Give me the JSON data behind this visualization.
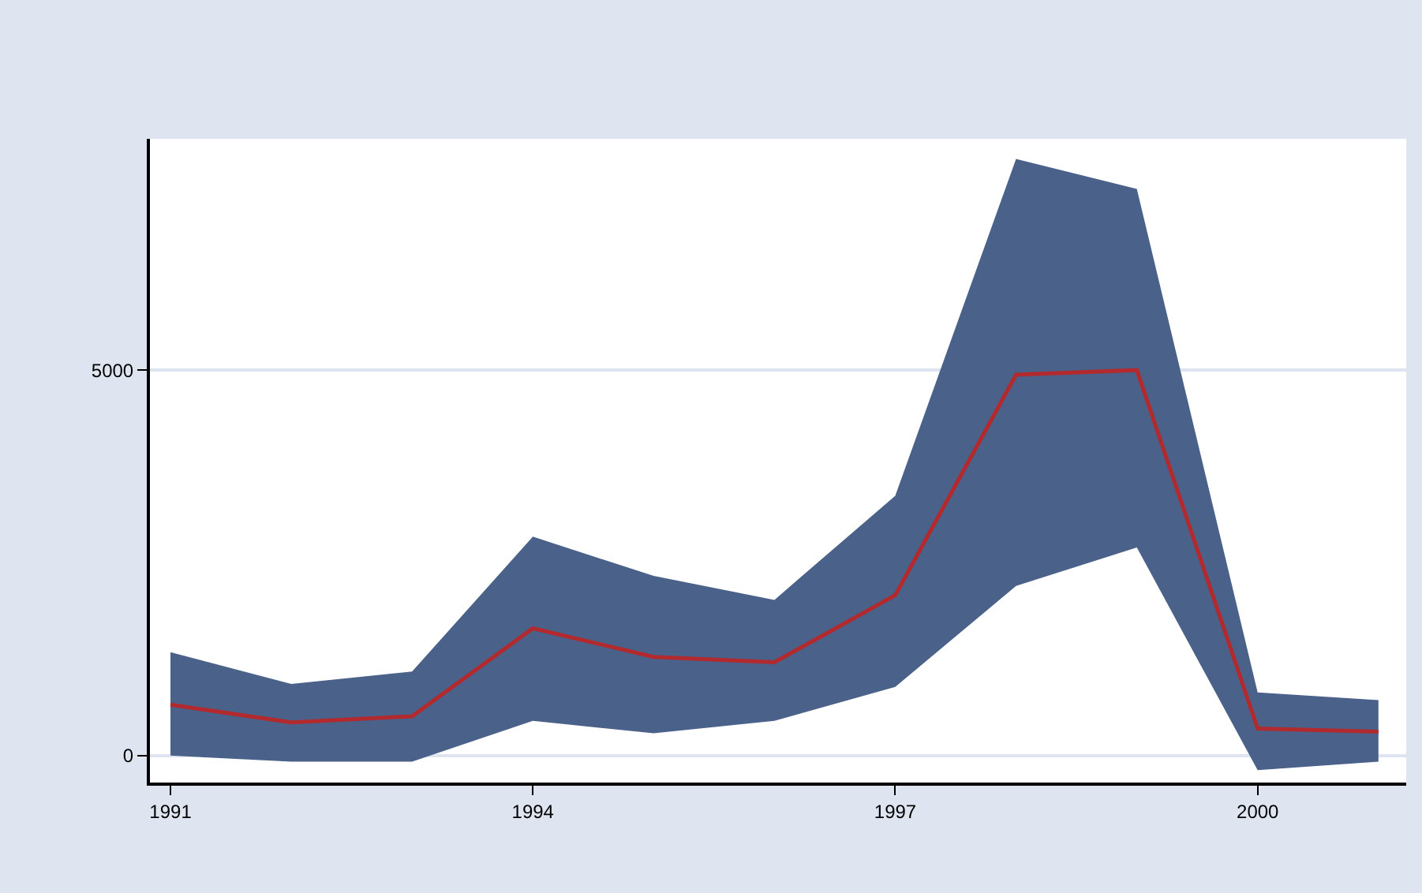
{
  "chart_data": {
    "type": "line",
    "x": [
      1991,
      1992,
      1993,
      1994,
      1995,
      1996,
      1997,
      1998,
      1999,
      2000,
      2001
    ],
    "series": [
      {
        "color": "#b22a2e",
        "values": [
          660,
          430,
          510,
          1650,
          1280,
          1210,
          2080,
          4940,
          5000,
          350,
          310
        ],
        "lower": [
          0,
          -80,
          -80,
          450,
          290,
          450,
          890,
          2200,
          2700,
          -190,
          -80
        ],
        "upper": [
          1340,
          930,
          1090,
          2840,
          2330,
          2020,
          3370,
          7740,
          7350,
          820,
          720
        ]
      }
    ],
    "xlim": [
      1990.83,
      2001.23
    ],
    "xticks": [
      1991,
      1994,
      1997,
      2000
    ],
    "ylim": [
      -350,
      8000
    ],
    "yticks": [
      0,
      5000
    ],
    "grid": "y"
  }
}
